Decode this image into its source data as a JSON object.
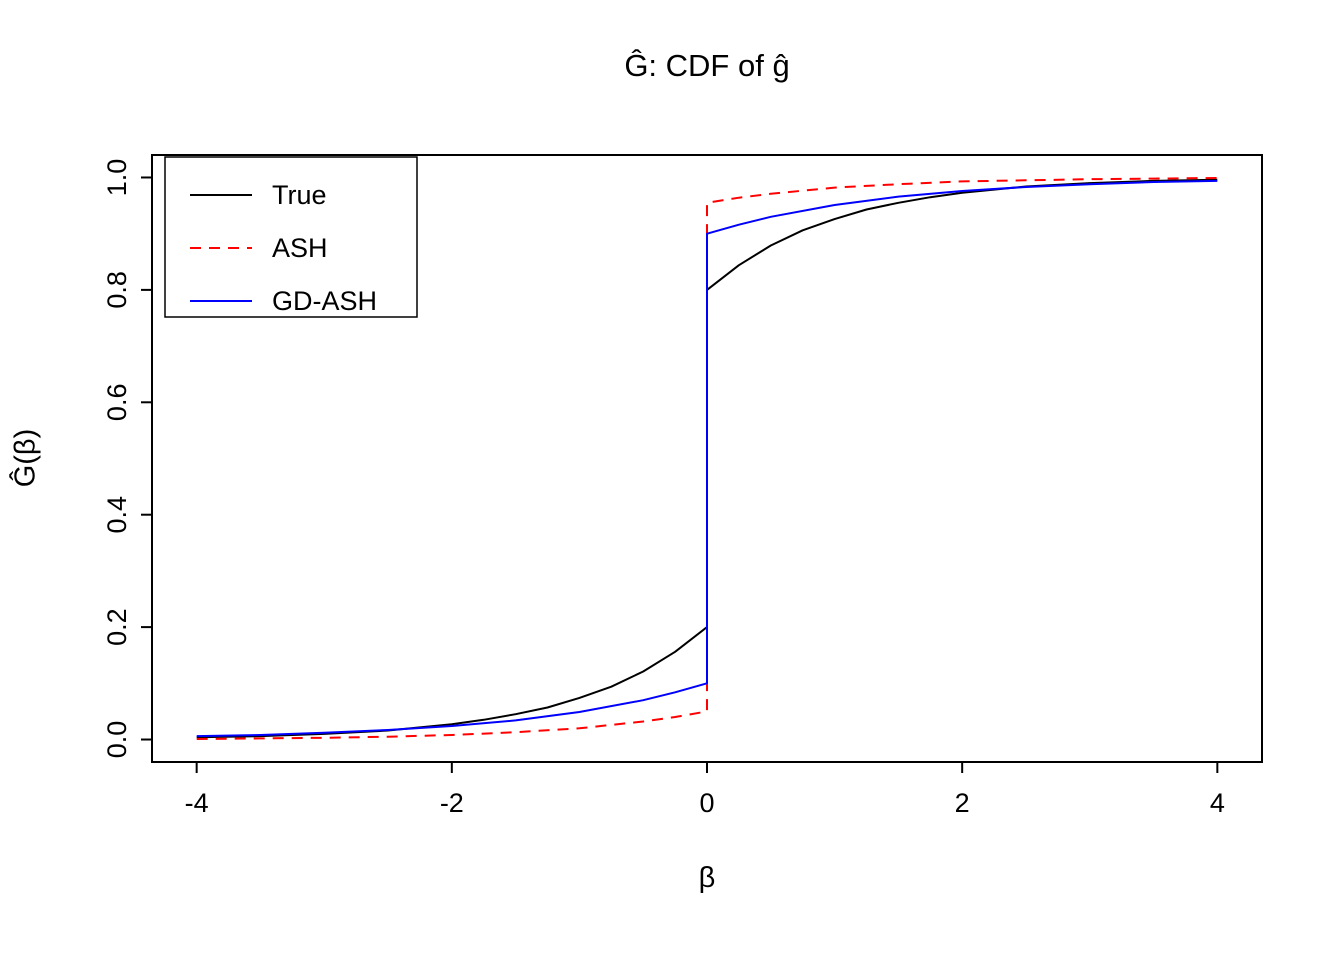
{
  "chart_data": {
    "type": "line",
    "title": "Ĝ: CDF of ĝ",
    "xlabel": "β",
    "ylabel": "Ĝ(β)",
    "xlim": [
      -4.35,
      4.35
    ],
    "ylim": [
      -0.04,
      1.04
    ],
    "x_ticks": [
      -4,
      -2,
      0,
      2,
      4
    ],
    "x_tick_labels": [
      "-4",
      "-2",
      "0",
      "2",
      "4"
    ],
    "y_ticks": [
      0.0,
      0.2,
      0.4,
      0.6,
      0.8,
      1.0
    ],
    "y_tick_labels": [
      "0.0",
      "0.2",
      "0.4",
      "0.6",
      "0.8",
      "1.0"
    ],
    "grid": false,
    "legend_position": "top-left",
    "axis_color": "#000000",
    "series": [
      {
        "name": "True",
        "color": "#000000",
        "dash": "solid",
        "jump_at_zero": [
          0.2,
          0.8
        ],
        "points": [
          [
            -4,
            0.004
          ],
          [
            -3.5,
            0.006
          ],
          [
            -3,
            0.01
          ],
          [
            -2.5,
            0.016
          ],
          [
            -2,
            0.027
          ],
          [
            -1.75,
            0.035
          ],
          [
            -1.5,
            0.045
          ],
          [
            -1.25,
            0.057
          ],
          [
            -1,
            0.074
          ],
          [
            -0.75,
            0.094
          ],
          [
            -0.5,
            0.121
          ],
          [
            -0.25,
            0.156
          ],
          [
            0,
            0.2
          ],
          [
            0,
            0.8
          ],
          [
            0.25,
            0.844
          ],
          [
            0.5,
            0.879
          ],
          [
            0.75,
            0.906
          ],
          [
            1,
            0.926
          ],
          [
            1.25,
            0.943
          ],
          [
            1.5,
            0.955
          ],
          [
            1.75,
            0.965
          ],
          [
            2,
            0.973
          ],
          [
            2.5,
            0.984
          ],
          [
            3,
            0.99
          ],
          [
            3.5,
            0.994
          ],
          [
            4,
            0.996
          ]
        ]
      },
      {
        "name": "ASH",
        "color": "#FF0000",
        "dash": "dashed",
        "jump_at_zero": [
          0.05,
          0.955
        ],
        "points": [
          [
            -4,
            0.001
          ],
          [
            -3.5,
            0.002
          ],
          [
            -3,
            0.003
          ],
          [
            -2.5,
            0.005
          ],
          [
            -2,
            0.008
          ],
          [
            -1.5,
            0.013
          ],
          [
            -1,
            0.02
          ],
          [
            -0.5,
            0.032
          ],
          [
            -0.25,
            0.04
          ],
          [
            0,
            0.05
          ],
          [
            0,
            0.955
          ],
          [
            0.25,
            0.964
          ],
          [
            0.5,
            0.971
          ],
          [
            1,
            0.982
          ],
          [
            1.5,
            0.988
          ],
          [
            2,
            0.993
          ],
          [
            2.5,
            0.995
          ],
          [
            3,
            0.997
          ],
          [
            3.5,
            0.998
          ],
          [
            4,
            0.999
          ]
        ]
      },
      {
        "name": "GD-ASH",
        "color": "#0000FF",
        "dash": "solid",
        "jump_at_zero": [
          0.1,
          0.9
        ],
        "points": [
          [
            -4,
            0.006
          ],
          [
            -3.5,
            0.008
          ],
          [
            -3,
            0.012
          ],
          [
            -2.5,
            0.017
          ],
          [
            -2,
            0.024
          ],
          [
            -1.5,
            0.034
          ],
          [
            -1,
            0.049
          ],
          [
            -0.5,
            0.07
          ],
          [
            -0.25,
            0.084
          ],
          [
            0,
            0.1
          ],
          [
            0,
            0.9
          ],
          [
            0.25,
            0.916
          ],
          [
            0.5,
            0.93
          ],
          [
            1,
            0.951
          ],
          [
            1.5,
            0.966
          ],
          [
            2,
            0.976
          ],
          [
            2.5,
            0.983
          ],
          [
            3,
            0.988
          ],
          [
            3.5,
            0.992
          ],
          [
            4,
            0.994
          ]
        ]
      }
    ]
  }
}
